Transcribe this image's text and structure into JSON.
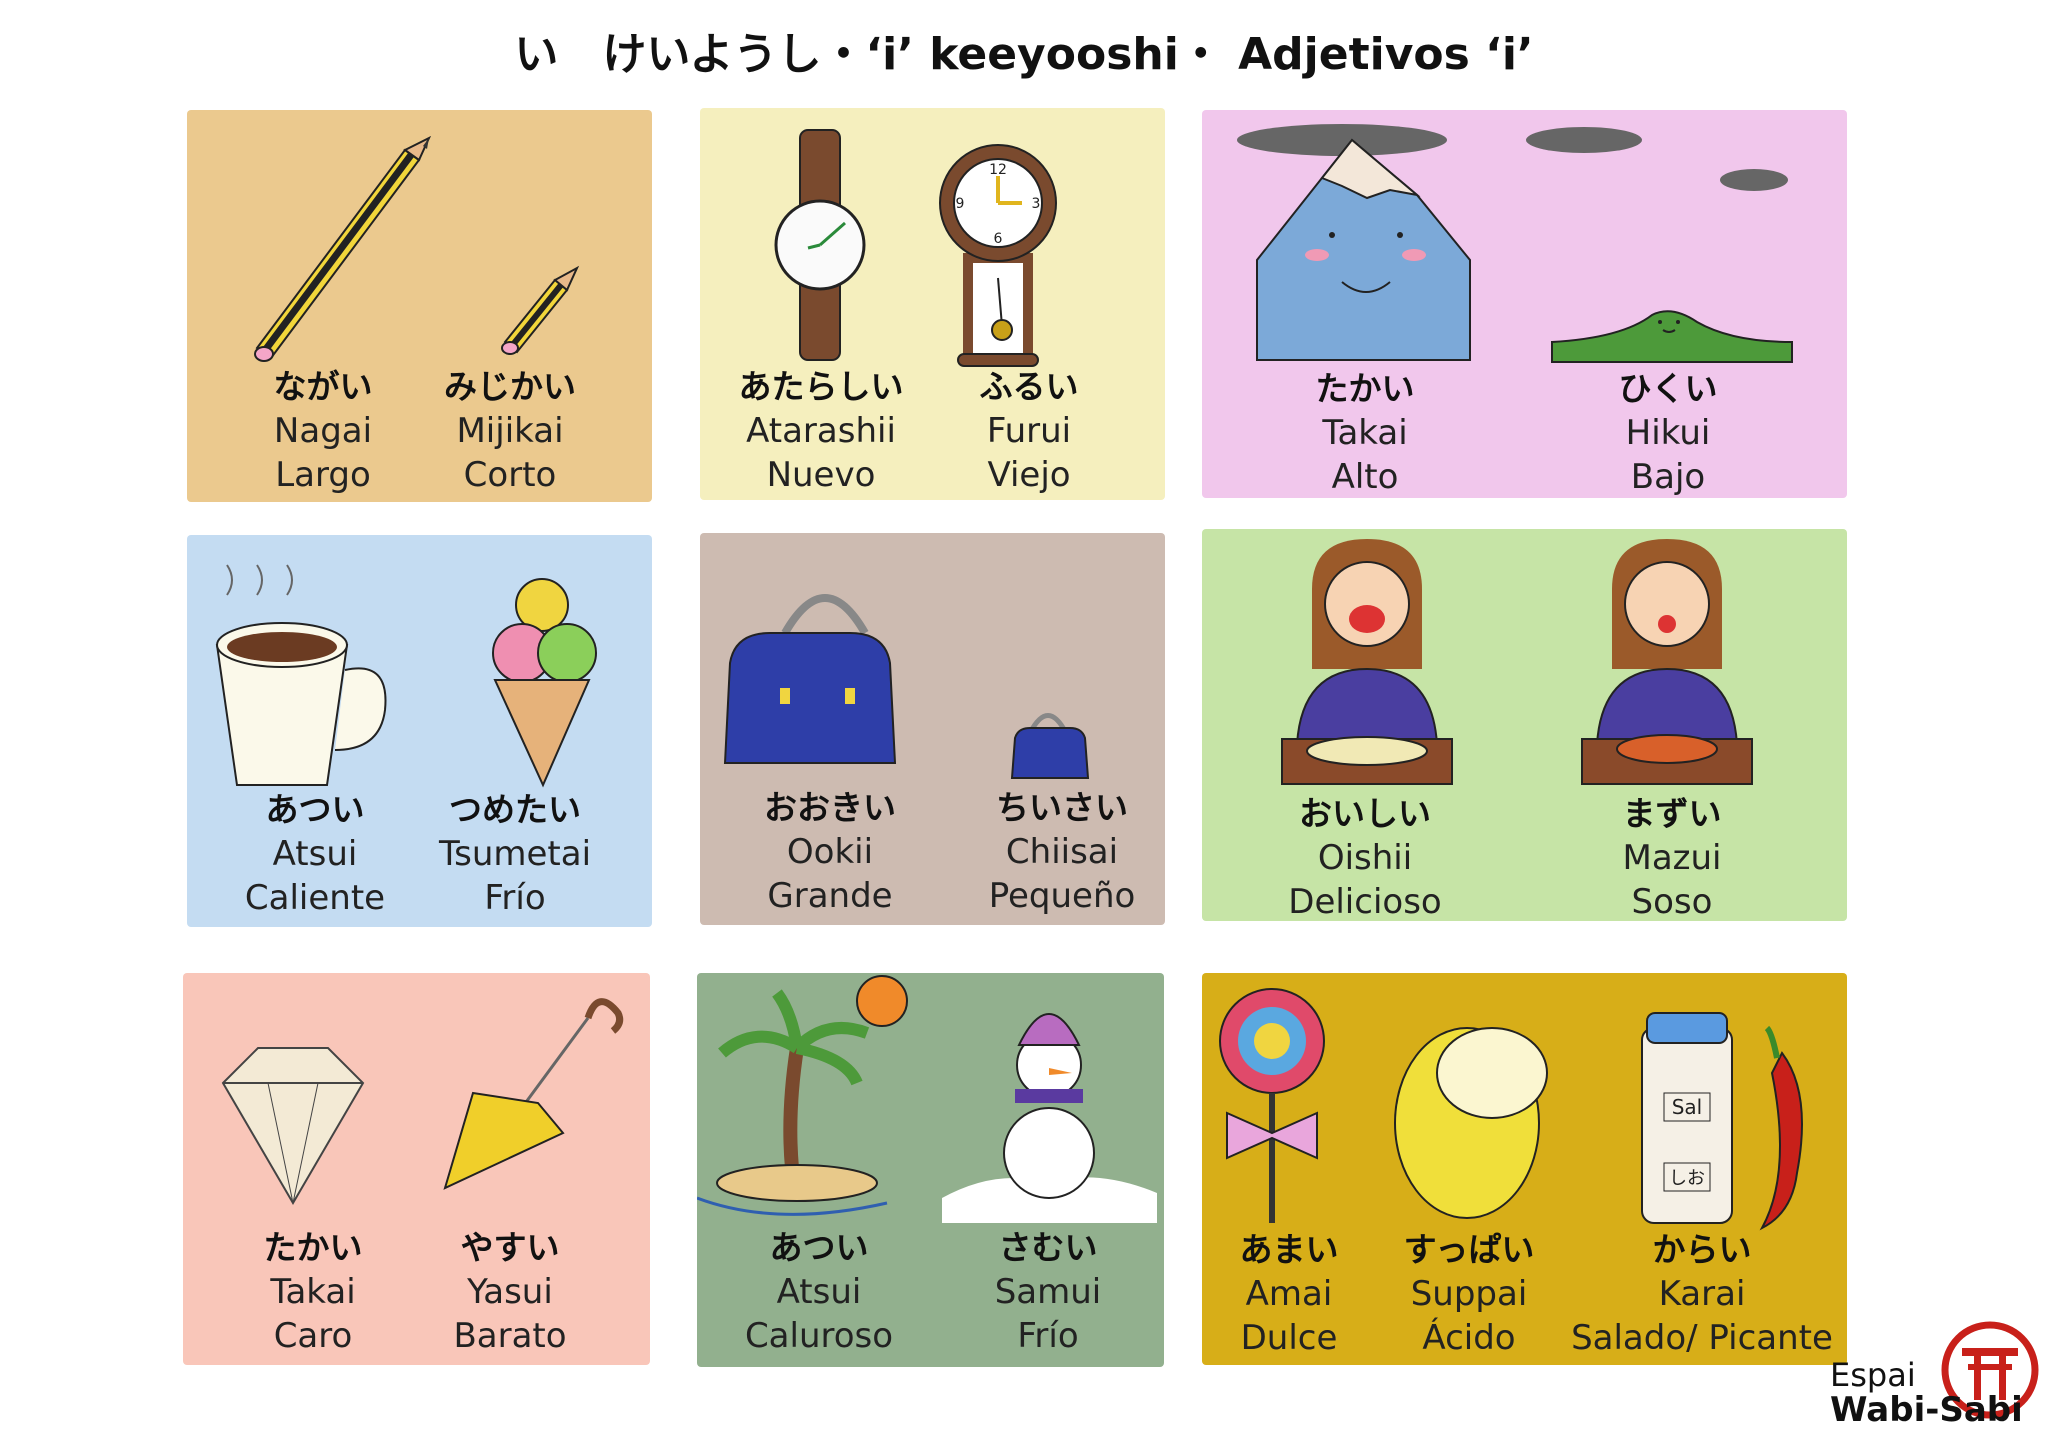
{
  "title": "い　けいようし・‘i’ keeyooshi・ Adjetivos ‘i’",
  "colors": {
    "c1": "#ebc98e",
    "c2": "#f5efbe",
    "c3": "#f1c7ec",
    "c4": "#c4dcf2",
    "c5": "#cdbbb1",
    "c6": "#c6e4a6",
    "c7": "#f9c6b9",
    "c8": "#92b08e",
    "c9": "#d7ae18"
  },
  "cards": [
    {
      "words": [
        {
          "kana": "ながい",
          "rom": "Nagai",
          "es": "Largo"
        },
        {
          "kana": "みじかい",
          "rom": "Mijikai",
          "es": "Corto"
        }
      ]
    },
    {
      "words": [
        {
          "kana": "あたらしい",
          "rom": "Atarashii",
          "es": "Nuevo"
        },
        {
          "kana": "ふるい",
          "rom": "Furui",
          "es": "Viejo"
        }
      ]
    },
    {
      "words": [
        {
          "kana": "たかい",
          "rom": "Takai",
          "es": "Alto"
        },
        {
          "kana": "ひくい",
          "rom": "Hikui",
          "es": "Bajo"
        }
      ]
    },
    {
      "words": [
        {
          "kana": "あつい",
          "rom": "Atsui",
          "es": "Caliente"
        },
        {
          "kana": "つめたい",
          "rom": "Tsumetai",
          "es": "Frío"
        }
      ]
    },
    {
      "words": [
        {
          "kana": "おおきい",
          "rom": "Ookii",
          "es": "Grande"
        },
        {
          "kana": "ちいさい",
          "rom": "Chiisai",
          "es": "Pequeño"
        }
      ]
    },
    {
      "words": [
        {
          "kana": "おいしい",
          "rom": "Oishii",
          "es": "Delicioso"
        },
        {
          "kana": "まずい",
          "rom": "Mazui",
          "es": "Soso"
        }
      ]
    },
    {
      "words": [
        {
          "kana": "たかい",
          "rom": "Takai",
          "es": "Caro"
        },
        {
          "kana": "やすい",
          "rom": "Yasui",
          "es": "Barato"
        }
      ]
    },
    {
      "words": [
        {
          "kana": "あつい",
          "rom": "Atsui",
          "es": "Caluroso"
        },
        {
          "kana": "さむい",
          "rom": "Samui",
          "es": "Frío"
        }
      ]
    },
    {
      "words": [
        {
          "kana": "あまい",
          "rom": "Amai",
          "es": "Dulce"
        },
        {
          "kana": "すっぱい",
          "rom": "Suppai",
          "es": "Ácido"
        },
        {
          "kana": "からい",
          "rom": "Karai",
          "es": "Salado/ Picante"
        }
      ]
    }
  ],
  "clock_numbers": [
    "12",
    "3",
    "6",
    "9"
  ],
  "salt_labels": [
    "Sal",
    "しお"
  ],
  "logo": {
    "line1": "Espai",
    "line2": "Wabi-Sabi"
  }
}
